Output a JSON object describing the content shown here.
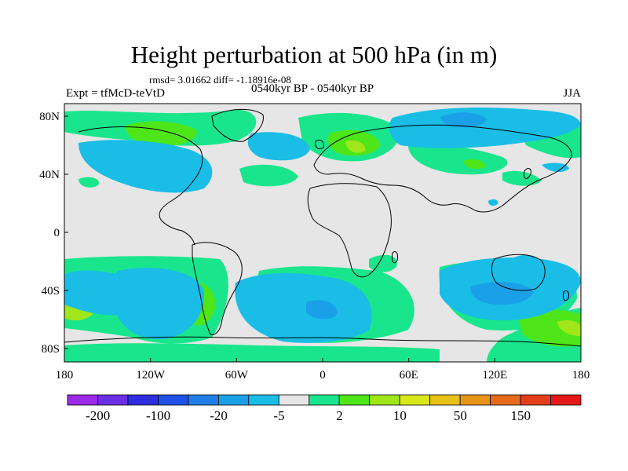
{
  "header": {
    "title": "Height perturbation at 500 hPa (in m)",
    "stats": "rmsd= 3.01662 diff= -1.18916e-08",
    "left_label": "Expt = tfMcD-teVtD",
    "center_label": "0540kyr BP - 0540kyr BP",
    "right_label": "JJA"
  },
  "map": {
    "lat_ticks": [
      "80N",
      "40N",
      "0",
      "40S",
      "80S"
    ],
    "lon_ticks": [
      "180",
      "120W",
      "60W",
      "0",
      "60E",
      "120E",
      "180"
    ]
  },
  "colorbar": {
    "colors": [
      "#9b2ae6",
      "#6b30e6",
      "#2e2ee0",
      "#1f50e6",
      "#1f7fe6",
      "#1aa0e6",
      "#19bde6",
      "#e6e6e6",
      "#19e68c",
      "#4ee619",
      "#a0e619",
      "#d9e619",
      "#e6c219",
      "#e69519",
      "#e66a19",
      "#e63d19",
      "#e61919"
    ],
    "labels": [
      "-200",
      "-100",
      "-20",
      "-5",
      "2",
      "10",
      "50",
      "150"
    ]
  }
}
